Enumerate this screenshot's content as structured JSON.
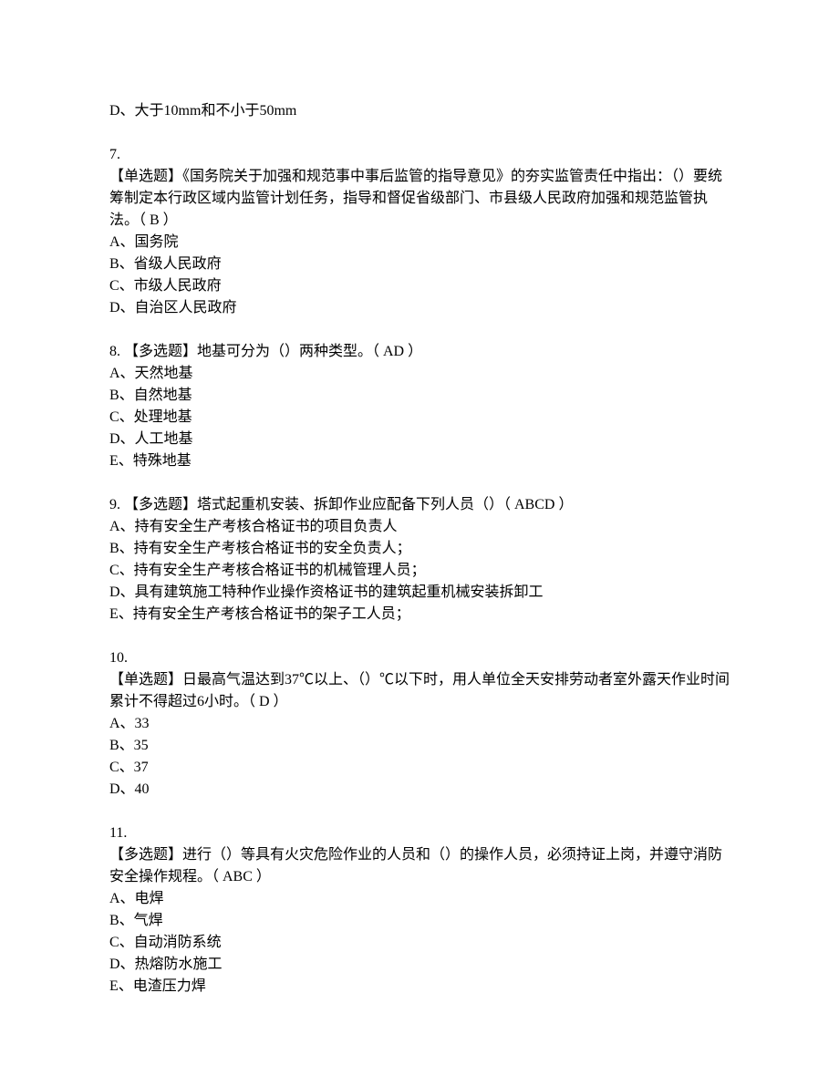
{
  "q6": {
    "optD": "D、大于10mm和不小于50mm"
  },
  "q7": {
    "num": "7.",
    "text": "【单选题】《国务院关于加强和规范事中事后监管的指导意见》的夯实监管责任中指出：（）要统筹制定本行政区域内监管计划任务，指导和督促省级部门、市县级人民政府加强和规范监管执法。（  B  ）",
    "optA": "A、国务院",
    "optB": "B、省级人民政府",
    "optC": "C、市级人民政府",
    "optD": "D、自治区人民政府"
  },
  "q8": {
    "text": "8. 【多选题】地基可分为（）两种类型。（  AD  ）",
    "optA": "A、天然地基",
    "optB": "B、自然地基",
    "optC": "C、处理地基",
    "optD": "D、人工地基",
    "optE": "E、特殊地基"
  },
  "q9": {
    "text": "9. 【多选题】塔式起重机安装、拆卸作业应配备下列人员（）（  ABCD  ）",
    "optA": "A、持有安全生产考核合格证书的项目负责人",
    "optB": "B、持有安全生产考核合格证书的安全负责人；",
    "optC": "C、持有安全生产考核合格证书的机械管理人员；",
    "optD": "D、具有建筑施工特种作业操作资格证书的建筑起重机械安装拆卸工",
    "optE": "E、持有安全生产考核合格证书的架子工人员；"
  },
  "q10": {
    "num": "10.",
    "text": "【单选题】日最高气温达到37℃以上、（）℃以下时，用人单位全天安排劳动者室外露天作业时间累计不得超过6小时。（  D  ）",
    "optA": "A、33",
    "optB": "B、35",
    "optC": "C、37",
    "optD": "D、40"
  },
  "q11": {
    "num": "11.",
    "text": "【多选题】进行（）等具有火灾危险作业的人员和（）的操作人员，必须持证上岗，并遵守消防安全操作规程。（  ABC  ）",
    "optA": "A、电焊",
    "optB": "B、气焊",
    "optC": "C、自动消防系统",
    "optD": "D、热熔防水施工",
    "optE": "E、电渣压力焊"
  }
}
